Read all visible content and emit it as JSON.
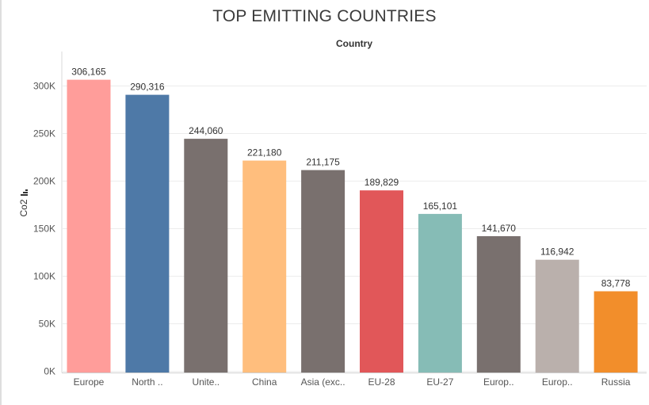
{
  "header": {
    "title": "TOP EMITTING COUNTRIES",
    "column_label": "Country"
  },
  "chart_data": {
    "type": "bar",
    "title": "TOP EMITTING COUNTRIES",
    "xlabel": "",
    "ylabel": "Co2",
    "categories": [
      "Europe",
      "North ..",
      "Unite..",
      "China",
      "Asia (exc..",
      "EU-28",
      "EU-27",
      "Europ..",
      "Europ..",
      "Russia"
    ],
    "values": [
      306165,
      290316,
      244060,
      221180,
      211175,
      189829,
      165101,
      141670,
      116942,
      83778
    ],
    "value_labels": [
      "306,165",
      "290,316",
      "244,060",
      "221,180",
      "211,175",
      "189,829",
      "165,101",
      "141,670",
      "116,942",
      "83,778"
    ],
    "colors": [
      "#ff9d9a",
      "#4e79a7",
      "#79706e",
      "#ffbe7d",
      "#79706e",
      "#e15759",
      "#86bcb6",
      "#79706e",
      "#bab0ac",
      "#f28e2b"
    ],
    "ylim": [
      0,
      320000
    ],
    "yticks": [
      0,
      50000,
      100000,
      150000,
      200000,
      250000,
      300000
    ],
    "ytick_labels": [
      "0K",
      "50K",
      "100K",
      "150K",
      "200K",
      "250K",
      "300K"
    ],
    "grid": true,
    "legend": "none"
  }
}
